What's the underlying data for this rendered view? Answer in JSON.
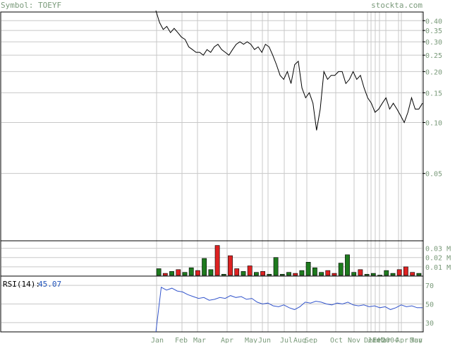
{
  "header": {
    "symbol_label": "Symbol: TOEYF",
    "brand": "stockta.com"
  },
  "colors": {
    "price_line": "#000000",
    "grid": "#c8c8c8",
    "axis_text": "#7a9a7a",
    "vol_up": "#1e7a1e",
    "vol_down": "#dd2222",
    "rsi_line": "#3355cc",
    "rsi_value": "#2255bb"
  },
  "chart_data": [
    {
      "type": "line",
      "title": "",
      "y_scale": "log",
      "ylim": [
        0.02,
        0.45
      ],
      "yticks": [
        "0.40",
        "0.35",
        "0.30",
        "0.25",
        "0.20",
        "0.15",
        "0.10",
        "0.05"
      ],
      "xticks": [
        "Jan",
        "Feb",
        "Mar",
        "Apr",
        "May",
        "Jun",
        "Jul",
        "Aug",
        "Sep",
        "Oct",
        "Nov",
        "Dec",
        "Jan",
        "Feb",
        "Mar",
        "2004",
        "Apr",
        "May",
        "Jun"
      ],
      "grid": true,
      "series": [
        {
          "values": [
            0.7,
            0.39,
            0.355,
            0.37,
            0.34,
            0.36,
            0.34,
            0.32,
            0.31,
            0.28,
            0.27,
            0.26,
            0.26,
            0.25,
            0.27,
            0.26,
            0.28,
            0.29,
            0.27,
            0.26,
            0.25,
            0.27,
            0.29,
            0.3,
            0.29,
            0.3,
            0.29,
            0.27,
            0.28,
            0.26,
            0.29,
            0.28,
            0.25,
            0.22,
            0.19,
            0.18,
            0.2,
            0.17,
            0.22,
            0.23,
            0.16,
            0.14,
            0.15,
            0.13,
            0.09,
            0.12,
            0.2,
            0.18,
            0.19,
            0.19,
            0.2,
            0.2,
            0.17,
            0.18,
            0.2,
            0.18,
            0.19,
            0.16,
            0.14,
            0.13,
            0.115,
            0.12,
            0.13,
            0.14,
            0.12,
            0.13,
            0.12,
            0.11,
            0.1,
            0.115,
            0.14,
            0.12,
            0.12,
            0.13
          ]
        }
      ]
    },
    {
      "type": "bar",
      "title": "",
      "ylim": [
        0,
        0.035
      ],
      "yticks": [
        "0.03 M",
        "0.02 M",
        "0.01 M"
      ],
      "series": [
        {
          "name": "",
          "values": [
            0.008,
            0.003,
            0.005,
            0.007,
            0.004,
            0.009,
            0.006,
            0.019,
            0.007,
            0.033,
            0.002,
            0.022,
            0.008,
            0.005,
            0.011,
            0.004,
            0.005,
            0.002,
            0.02,
            0.002,
            0.004,
            0.003,
            0.006,
            0.015,
            0.009,
            0.004,
            0.006,
            0.003,
            0.014,
            0.023,
            0.004,
            0.007,
            0.002,
            0.003,
            0.001,
            0.006,
            0.003,
            0.007,
            0.01,
            0.004,
            0.003
          ]
        }
      ],
      "bar_direction": [
        "up",
        "down",
        "up",
        "down",
        "up",
        "up",
        "down",
        "up",
        "up",
        "down",
        "up",
        "down",
        "down",
        "up",
        "down",
        "up",
        "down",
        "up",
        "up",
        "up",
        "up",
        "down",
        "up",
        "up",
        "up",
        "up",
        "down",
        "down",
        "up",
        "up",
        "up",
        "down",
        "up",
        "up",
        "up",
        "up",
        "up",
        "down",
        "down",
        "down",
        "up"
      ]
    },
    {
      "type": "line",
      "title": "",
      "label": "RSI(14):",
      "value_label": "45.07",
      "ylim": [
        20,
        80
      ],
      "yticks": [
        "70",
        "50",
        "30"
      ],
      "series": [
        {
          "values": [
            0,
            68,
            65,
            67,
            64,
            63,
            60,
            58,
            56,
            57,
            54,
            55,
            57,
            56,
            59,
            57,
            58,
            55,
            56,
            52,
            50,
            51,
            48,
            47,
            49,
            46,
            44,
            47,
            52,
            51,
            53,
            52,
            50,
            49,
            51,
            50,
            52,
            49,
            48,
            49,
            47,
            48,
            46,
            47,
            44,
            46,
            49,
            47,
            48,
            46,
            46
          ]
        }
      ]
    }
  ]
}
